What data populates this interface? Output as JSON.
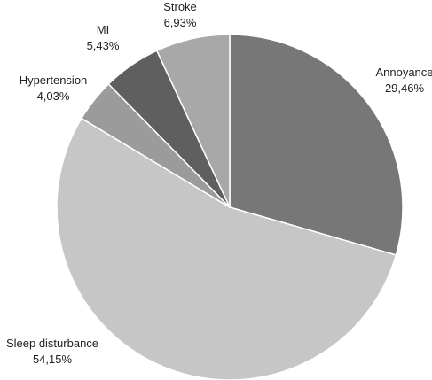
{
  "chart_data": {
    "type": "pie",
    "slices": [
      {
        "label": "Annoyance",
        "value_label": "29,46%",
        "value": 29.46,
        "color": "#777777"
      },
      {
        "label": "Sleep disturbance",
        "value_label": "54,15%",
        "value": 54.15,
        "color": "#c6c6c6"
      },
      {
        "label": "Hypertension",
        "value_label": "4,03%",
        "value": 4.03,
        "color": "#9b9b9b"
      },
      {
        "label": "MI",
        "value_label": "5,43%",
        "value": 5.43,
        "color": "#5f5f5f"
      },
      {
        "label": "Stroke",
        "value_label": "6,93%",
        "value": 6.93,
        "color": "#a8a8a8"
      }
    ]
  }
}
